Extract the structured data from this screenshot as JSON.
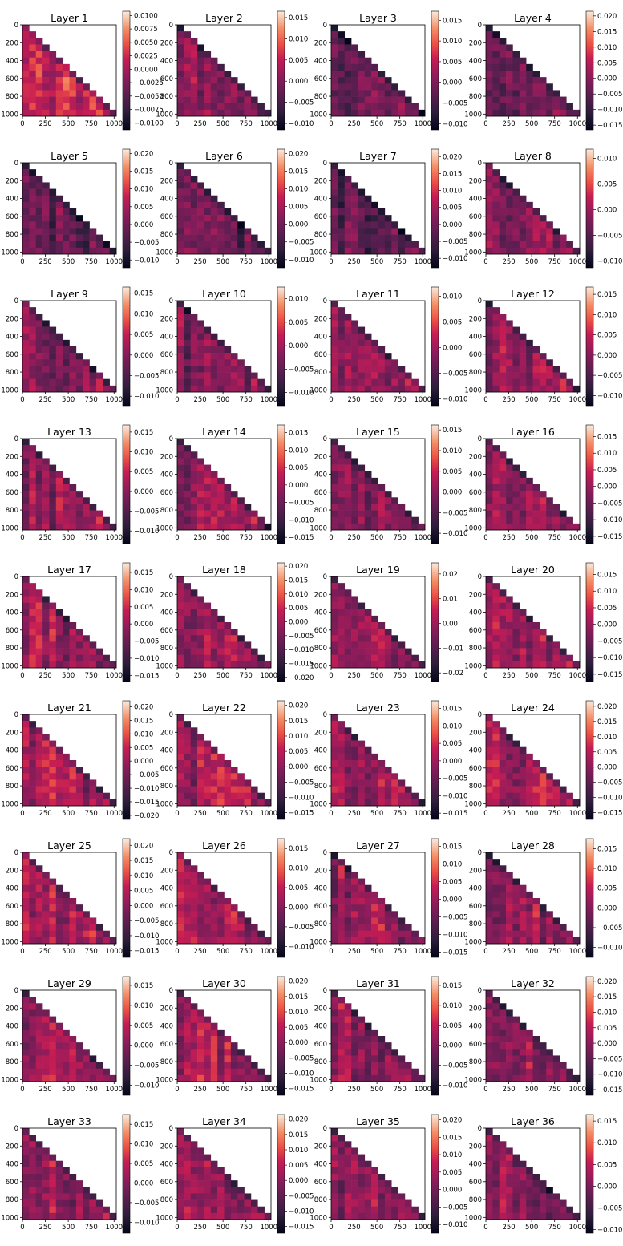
{
  "chart_data": {
    "type": "heatmap",
    "layout": {
      "rows": 9,
      "cols": 4
    },
    "colormap": "rocket",
    "mask": "upper-triangle",
    "x_ticks": [
      "0",
      "250",
      "500",
      "750",
      "1000"
    ],
    "y_ticks": [
      "0",
      "200",
      "400",
      "600",
      "800",
      "1000"
    ],
    "panels": [
      {
        "title": "Layer 1",
        "cbar_range": [
          -0.0113,
          0.0108
        ],
        "cbar_ticks": [
          "0.0100",
          "0.0075",
          "0.0050",
          "0.0025",
          "0.0000",
          "−0.0025",
          "−0.0050",
          "−0.0075",
          "−0.0100"
        ],
        "tone": 0.62
      },
      {
        "title": "Layer 2",
        "cbar_range": [
          -0.0115,
          0.0165
        ],
        "cbar_ticks": [
          "0.015",
          "0.010",
          "0.005",
          "0.000",
          "−0.005",
          "−0.010"
        ],
        "tone": 0.42
      },
      {
        "title": "Layer 3",
        "cbar_range": [
          -0.0115,
          0.0172
        ],
        "cbar_ticks": [
          "0.015",
          "0.010",
          "0.005",
          "0.000",
          "−0.005",
          "−0.010"
        ],
        "tone": 0.38
      },
      {
        "title": "Layer 4",
        "cbar_range": [
          -0.0165,
          0.0215
        ],
        "cbar_ticks": [
          "0.020",
          "0.015",
          "0.010",
          "0.005",
          "0.000",
          "−0.005",
          "−0.010",
          "−0.015"
        ],
        "tone": 0.36
      },
      {
        "title": "Layer 5",
        "cbar_range": [
          -0.0122,
          0.0212
        ],
        "cbar_ticks": [
          "0.020",
          "0.015",
          "0.010",
          "0.005",
          "0.000",
          "−0.005",
          "−0.010"
        ],
        "tone": 0.33
      },
      {
        "title": "Layer 6",
        "cbar_range": [
          -0.0123,
          0.0212
        ],
        "cbar_ticks": [
          "0.020",
          "0.015",
          "0.010",
          "0.005",
          "0.000",
          "−0.005",
          "−0.010"
        ],
        "tone": 0.32
      },
      {
        "title": "Layer 7",
        "cbar_range": [
          -0.0128,
          0.0222
        ],
        "cbar_ticks": [
          "0.020",
          "0.015",
          "0.010",
          "0.005",
          "0.000",
          "−0.005",
          "−0.010"
        ],
        "tone": 0.3
      },
      {
        "title": "Layer 8",
        "cbar_range": [
          -0.0113,
          0.0118
        ],
        "cbar_ticks": [
          "0.010",
          "0.005",
          "0.000",
          "−0.005",
          "−0.010"
        ],
        "tone": 0.45
      },
      {
        "title": "Layer 9",
        "cbar_range": [
          -0.0123,
          0.0165
        ],
        "cbar_ticks": [
          "0.015",
          "0.010",
          "0.005",
          "0.000",
          "−0.005",
          "−0.010"
        ],
        "tone": 0.43
      },
      {
        "title": "Layer 10",
        "cbar_range": [
          -0.0128,
          0.0125
        ],
        "cbar_ticks": [
          "0.010",
          "0.005",
          "0.000",
          "−0.005",
          "−0.010"
        ],
        "tone": 0.42
      },
      {
        "title": "Layer 11",
        "cbar_range": [
          -0.0113,
          0.0118
        ],
        "cbar_ticks": [
          "0.010",
          "0.005",
          "0.000",
          "−0.005",
          "−0.010"
        ],
        "tone": 0.44
      },
      {
        "title": "Layer 12",
        "cbar_range": [
          -0.0125,
          0.0168
        ],
        "cbar_ticks": [
          "0.015",
          "0.010",
          "0.005",
          "0.000",
          "−0.005",
          "−0.010"
        ],
        "tone": 0.46
      },
      {
        "title": "Layer 13",
        "cbar_range": [
          -0.0132,
          0.0168
        ],
        "cbar_ticks": [
          "0.015",
          "0.010",
          "0.005",
          "0.000",
          "−0.005",
          "−0.010"
        ],
        "tone": 0.47
      },
      {
        "title": "Layer 14",
        "cbar_range": [
          -0.0168,
          0.0172
        ],
        "cbar_ticks": [
          "0.015",
          "0.010",
          "0.005",
          "0.000",
          "−0.005",
          "−0.010",
          "−0.015"
        ],
        "tone": 0.46
      },
      {
        "title": "Layer 15",
        "cbar_range": [
          -0.0125,
          0.0162
        ],
        "cbar_ticks": [
          "0.015",
          "0.010",
          "0.005",
          "0.000",
          "−0.005",
          "−0.010"
        ],
        "tone": 0.46
      },
      {
        "title": "Layer 16",
        "cbar_range": [
          -0.0172,
          0.0185
        ],
        "cbar_ticks": [
          "0.015",
          "0.010",
          "0.005",
          "0.000",
          "−0.005",
          "−0.010",
          "−0.015"
        ],
        "tone": 0.47
      },
      {
        "title": "Layer 17",
        "cbar_range": [
          -0.0168,
          0.0178
        ],
        "cbar_ticks": [
          "0.015",
          "0.010",
          "0.005",
          "0.000",
          "−0.005",
          "−0.010",
          "−0.015"
        ],
        "tone": 0.48
      },
      {
        "title": "Layer 18",
        "cbar_range": [
          -0.0215,
          0.0212
        ],
        "cbar_ticks": [
          "0.020",
          "0.015",
          "0.010",
          "0.005",
          "0.000",
          "−0.005",
          "−0.010",
          "−0.015",
          "−0.020"
        ],
        "tone": 0.48
      },
      {
        "title": "Layer 19",
        "cbar_range": [
          -0.0235,
          0.0245
        ],
        "cbar_ticks": [
          "0.02",
          "0.01",
          "0.00",
          "−0.01",
          "−0.02"
        ],
        "tone": 0.47
      },
      {
        "title": "Layer 20",
        "cbar_range": [
          -0.0172,
          0.0185
        ],
        "cbar_ticks": [
          "0.015",
          "0.010",
          "0.005",
          "0.000",
          "−0.005",
          "−0.010",
          "−0.015"
        ],
        "tone": 0.48
      },
      {
        "title": "Layer 21",
        "cbar_range": [
          -0.0215,
          0.0222
        ],
        "cbar_ticks": [
          "0.020",
          "0.015",
          "0.010",
          "0.005",
          "0.000",
          "−0.005",
          "−0.010",
          "−0.015",
          "−0.020"
        ],
        "tone": 0.5
      },
      {
        "title": "Layer 22",
        "cbar_range": [
          -0.0172,
          0.0215
        ],
        "cbar_ticks": [
          "0.020",
          "0.015",
          "0.010",
          "0.005",
          "0.000",
          "−0.005",
          "−0.010",
          "−0.015"
        ],
        "tone": 0.49
      },
      {
        "title": "Layer 23",
        "cbar_range": [
          -0.0168,
          0.0172
        ],
        "cbar_ticks": [
          "0.015",
          "0.010",
          "0.005",
          "0.000",
          "−0.005",
          "−0.010",
          "−0.015"
        ],
        "tone": 0.48
      },
      {
        "title": "Layer 24",
        "cbar_range": [
          -0.0172,
          0.0218
        ],
        "cbar_ticks": [
          "0.020",
          "0.015",
          "0.010",
          "0.005",
          "0.000",
          "−0.005",
          "−0.010",
          "−0.015"
        ],
        "tone": 0.49
      },
      {
        "title": "Layer 25",
        "cbar_range": [
          -0.0172,
          0.0222
        ],
        "cbar_ticks": [
          "0.020",
          "0.015",
          "0.010",
          "0.005",
          "0.000",
          "−0.005",
          "−0.010",
          "−0.015"
        ],
        "tone": 0.49
      },
      {
        "title": "Layer 26",
        "cbar_range": [
          -0.0128,
          0.0175
        ],
        "cbar_ticks": [
          "0.015",
          "0.010",
          "0.005",
          "0.000",
          "−0.005",
          "−0.010"
        ],
        "tone": 0.47
      },
      {
        "title": "Layer 27",
        "cbar_range": [
          -0.0165,
          0.0172
        ],
        "cbar_ticks": [
          "0.015",
          "0.010",
          "0.005",
          "0.000",
          "−0.005",
          "−0.010",
          "−0.015"
        ],
        "tone": 0.48
      },
      {
        "title": "Layer 28",
        "cbar_range": [
          -0.0125,
          0.0175
        ],
        "cbar_ticks": [
          "0.015",
          "0.010",
          "0.005",
          "0.000",
          "−0.005",
          "−0.010"
        ],
        "tone": 0.47
      },
      {
        "title": "Layer 29",
        "cbar_range": [
          -0.0125,
          0.0172
        ],
        "cbar_ticks": [
          "0.015",
          "0.010",
          "0.005",
          "0.000",
          "−0.005",
          "−0.010"
        ],
        "tone": 0.47
      },
      {
        "title": "Layer 30",
        "cbar_range": [
          -0.0172,
          0.0215
        ],
        "cbar_ticks": [
          "0.020",
          "0.015",
          "0.010",
          "0.005",
          "0.000",
          "−0.005",
          "−0.010",
          "−0.015"
        ],
        "tone": 0.49
      },
      {
        "title": "Layer 31",
        "cbar_range": [
          -0.0125,
          0.0172
        ],
        "cbar_ticks": [
          "0.015",
          "0.010",
          "0.005",
          "0.000",
          "−0.005",
          "−0.010"
        ],
        "tone": 0.47
      },
      {
        "title": "Layer 32",
        "cbar_range": [
          -0.0168,
          0.0215
        ],
        "cbar_ticks": [
          "0.020",
          "0.015",
          "0.010",
          "0.005",
          "0.000",
          "−0.005",
          "−0.010",
          "−0.015"
        ],
        "tone": 0.48
      },
      {
        "title": "Layer 33",
        "cbar_range": [
          -0.0128,
          0.0175
        ],
        "cbar_ticks": [
          "0.015",
          "0.010",
          "0.005",
          "0.000",
          "−0.005",
          "−0.010"
        ],
        "tone": 0.47
      },
      {
        "title": "Layer 34",
        "cbar_range": [
          -0.0172,
          0.0215
        ],
        "cbar_ticks": [
          "0.020",
          "0.015",
          "0.010",
          "0.005",
          "0.000",
          "−0.005",
          "−0.010",
          "−0.015"
        ],
        "tone": 0.48
      },
      {
        "title": "Layer 35",
        "cbar_range": [
          -0.0125,
          0.0215
        ],
        "cbar_ticks": [
          "0.020",
          "0.015",
          "0.010",
          "0.005",
          "0.000",
          "−0.005",
          "−0.010"
        ],
        "tone": 0.46
      },
      {
        "title": "Layer 36",
        "cbar_range": [
          -0.0108,
          0.0165
        ],
        "cbar_ticks": [
          "0.015",
          "0.010",
          "0.005",
          "0.000",
          "−0.005",
          "−0.010"
        ],
        "tone": 0.44
      }
    ]
  }
}
